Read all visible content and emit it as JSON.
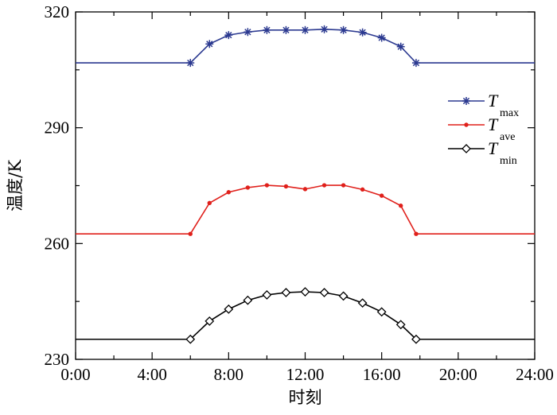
{
  "chart_data": {
    "type": "line",
    "title": "",
    "xlabel": "时刻",
    "ylabel": "温度/K",
    "x_tick_labels": [
      "0:00",
      "4:00",
      "8:00",
      "12:00",
      "16:00",
      "20:00",
      "24:00"
    ],
    "y_tick_labels": [
      "230",
      "260",
      "290",
      "320"
    ],
    "xlim": [
      0,
      24
    ],
    "ylim": [
      230,
      320
    ],
    "grid": false,
    "legend_position": "top-right",
    "series": [
      {
        "name": "T",
        "subscript": "max",
        "color": "#2b3990",
        "marker": "star",
        "x": [
          0,
          6,
          7,
          8,
          9,
          10,
          11,
          12,
          13,
          14,
          15,
          16,
          17,
          17.8,
          24
        ],
        "values": [
          306.8,
          306.8,
          311.7,
          314.0,
          314.8,
          315.3,
          315.3,
          315.3,
          315.5,
          315.3,
          314.7,
          313.3,
          311.0,
          306.8,
          306.8
        ]
      },
      {
        "name": "T",
        "subscript": "ave",
        "color": "#e0201b",
        "marker": "dot",
        "x": [
          0,
          6,
          7,
          8,
          9,
          10,
          11,
          12,
          13,
          14,
          15,
          16,
          17,
          17.8,
          24
        ],
        "values": [
          262.5,
          262.5,
          270.5,
          273.3,
          274.5,
          275.1,
          274.8,
          274.1,
          275.1,
          275.1,
          274.0,
          272.4,
          269.8,
          262.5,
          262.5
        ]
      },
      {
        "name": "T",
        "subscript": "min",
        "color": "#000000",
        "marker": "diamond",
        "x": [
          0,
          6,
          7,
          8,
          9,
          10,
          11,
          12,
          13,
          14,
          15,
          16,
          17,
          17.8,
          24
        ],
        "values": [
          235.2,
          235.2,
          239.9,
          243.0,
          245.3,
          246.7,
          247.3,
          247.5,
          247.3,
          246.4,
          244.6,
          242.3,
          239.0,
          235.2,
          235.2
        ]
      }
    ]
  }
}
